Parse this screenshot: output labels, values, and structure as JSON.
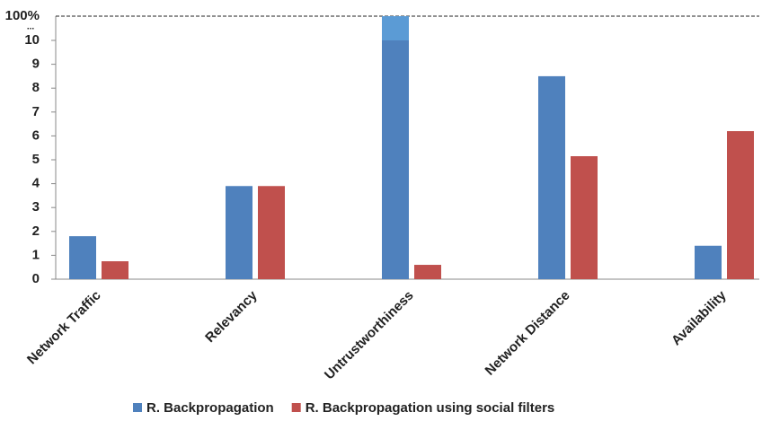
{
  "chart_data": {
    "type": "bar",
    "categories": [
      "Network Traffic",
      "Relevancy",
      "Untrustworthiness",
      "Network Distance",
      "Availability"
    ],
    "series": [
      {
        "name": "R. Backpropagation",
        "color": "#4f81bd",
        "values": [
          1.8,
          3.9,
          100,
          8.5,
          1.4
        ]
      },
      {
        "name": "R. Backpropagation using social filters",
        "color": "#c0504d",
        "values": [
          0.75,
          3.9,
          0.6,
          5.15,
          6.2
        ]
      }
    ],
    "ylim": [
      0,
      10
    ],
    "yticks": [
      0,
      1,
      2,
      3,
      4,
      5,
      6,
      7,
      8,
      9,
      10
    ],
    "axis_break": {
      "value": 100,
      "label": "100%",
      "ellipsis": "...",
      "color": "#5b9bd5"
    },
    "grid": false
  }
}
